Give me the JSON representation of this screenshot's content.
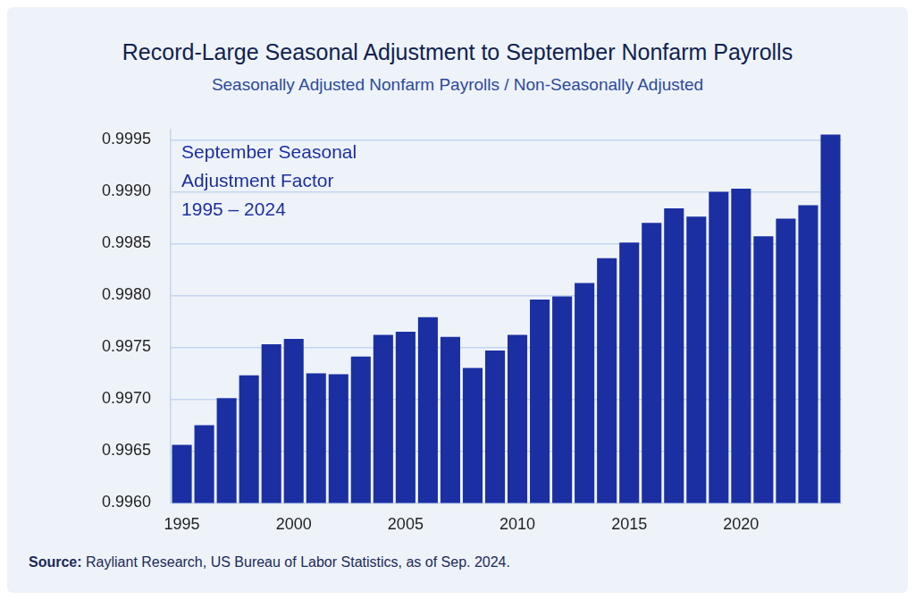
{
  "chart_data": {
    "type": "bar",
    "title": "Record-Large Seasonal Adjustment to September Nonfarm Payrolls",
    "subtitle": "Seasonally Adjusted Nonfarm Payrolls / Non-Seasonally Adjusted",
    "annotation": [
      "September Seasonal",
      "Adjustment Factor",
      "1995 – 2024"
    ],
    "source_label": "Source:",
    "source": "Rayliant Research, US Bureau of Labor Statistics, as of Sep. 2024.",
    "categories": [
      "1995",
      null,
      null,
      null,
      null,
      "2000",
      null,
      null,
      null,
      null,
      "2005",
      null,
      null,
      null,
      null,
      "2010",
      null,
      null,
      null,
      null,
      "2015",
      null,
      null,
      null,
      null,
      "2020",
      null,
      null,
      null,
      null
    ],
    "values": [
      0.99656,
      0.99675,
      0.99701,
      0.99723,
      0.99753,
      0.99758,
      0.99725,
      0.99724,
      0.99741,
      0.99762,
      0.99765,
      0.99779,
      0.9976,
      0.9973,
      0.99747,
      0.99762,
      0.99796,
      0.99799,
      0.99812,
      0.99836,
      0.99851,
      0.9987,
      0.99884,
      0.99876,
      0.999,
      0.99903,
      0.99857,
      0.99874,
      0.99887,
      0.99955
    ],
    "color": "#1b2fa3",
    "ylim": [
      0.996,
      0.9996
    ],
    "yticks": [
      {
        "value": 0.996,
        "label": "0.9960"
      },
      0.9965,
      {
        "value": 0.997,
        "label": "0.9970"
      },
      0.9975,
      {
        "value": 0.998,
        "label": "0.9980"
      },
      0.9985,
      {
        "value": 0.999,
        "label": "0.9990"
      },
      0.9995
    ],
    "grid": true
  }
}
